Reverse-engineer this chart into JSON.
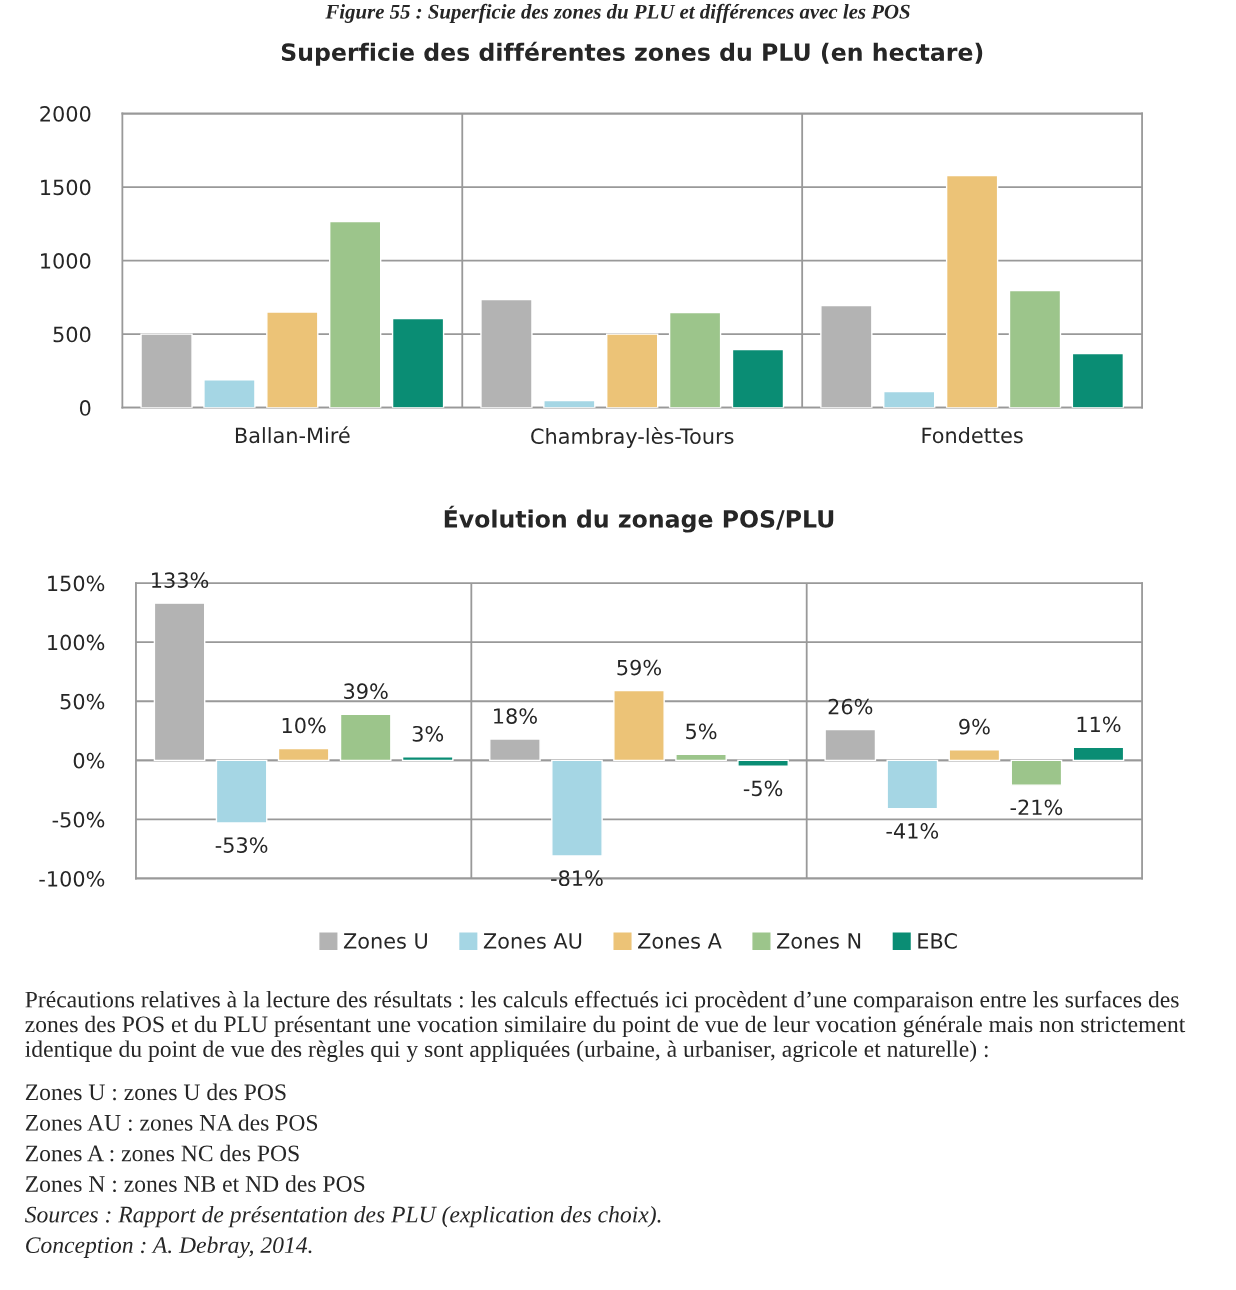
{
  "chart_data": [
    {
      "type": "bar",
      "title": "Superficie des différentes zones du PLU (en hectare)",
      "annotations": [
        "Figure 55 : Superficie des zones du PLU et différences avec les POS"
      ],
      "categories": [
        "Ballan-Miré",
        "Chambray-lès-Tours",
        "Fondettes"
      ],
      "series": [
        {
          "color": "#b3b3b3",
          "values": [
            500,
            735,
            695
          ]
        },
        {
          "color": "#a5d6e4",
          "values": [
            190,
            48,
            110
          ]
        },
        {
          "color": "#ecc377",
          "values": [
            650,
            500,
            1578
          ]
        },
        {
          "color": "#9cc58b",
          "values": [
            1265,
            646,
            796
          ]
        },
        {
          "color": "#0a8d74",
          "values": [
            605,
            395,
            367
          ]
        }
      ],
      "ylim": [
        0,
        2000
      ],
      "yticks": [
        0,
        500,
        1000,
        1500,
        2000
      ],
      "grid": true,
      "legend": false
    },
    {
      "type": "bar",
      "title": "Évolution du zonage POS/PLU",
      "categories": [
        null,
        null,
        null
      ],
      "series": [
        {
          "name": "Zones U",
          "color": "#b3b3b3",
          "values": [
            133,
            18,
            26
          ],
          "value_labels": [
            "133%",
            "18%",
            "26%"
          ]
        },
        {
          "name": "Zones AU",
          "color": "#a5d6e4",
          "values": [
            -53,
            -81,
            -41
          ],
          "value_labels": [
            "-53%",
            "-81%",
            "-41%"
          ]
        },
        {
          "name": "Zones A",
          "color": "#ecc377",
          "values": [
            10,
            59,
            9
          ],
          "value_labels": [
            "10%",
            "59%",
            "9%"
          ]
        },
        {
          "name": "Zones N",
          "color": "#9cc58b",
          "values": [
            39,
            5,
            -21
          ],
          "value_labels": [
            "39%",
            "5%",
            "-21%"
          ]
        },
        {
          "name": "EBC",
          "color": "#0a8d74",
          "values": [
            3,
            -5,
            11
          ],
          "value_labels": [
            "3%",
            "-5%",
            "11%"
          ]
        }
      ],
      "ylim": [
        -100,
        150
      ],
      "yticks": [
        {
          "value": -100,
          "label": "-100%"
        },
        {
          "value": -50,
          "label": "-50%"
        },
        {
          "value": 0,
          "label": "0%"
        },
        {
          "value": 50,
          "label": "50%"
        },
        {
          "value": 100,
          "label": "100%"
        },
        {
          "value": 150,
          "label": "150%"
        }
      ],
      "grid": true,
      "legend": "bottom",
      "annotations": [
        "Précautions relatives à la lecture des résultats : les calculs effectués ici procèdent d’une comparaison entre les surfaces des zones des POS et du PLU présentant une vocation similaire du point de vue de leur vocation générale mais non strictement identique du point de vue des règles qui y sont appliquées (urbaine, à urbaniser, agricole et naturelle) :",
        "Zones U : zones U des POS",
        "Zones AU : zones NA des POS",
        "Zones A : zones NC des POS",
        "Zones N : zones NB et ND des POS",
        "Sources : Rapport de présentation des PLU (explication des choix).",
        "Conception : A. Debray, 2014."
      ]
    }
  ]
}
